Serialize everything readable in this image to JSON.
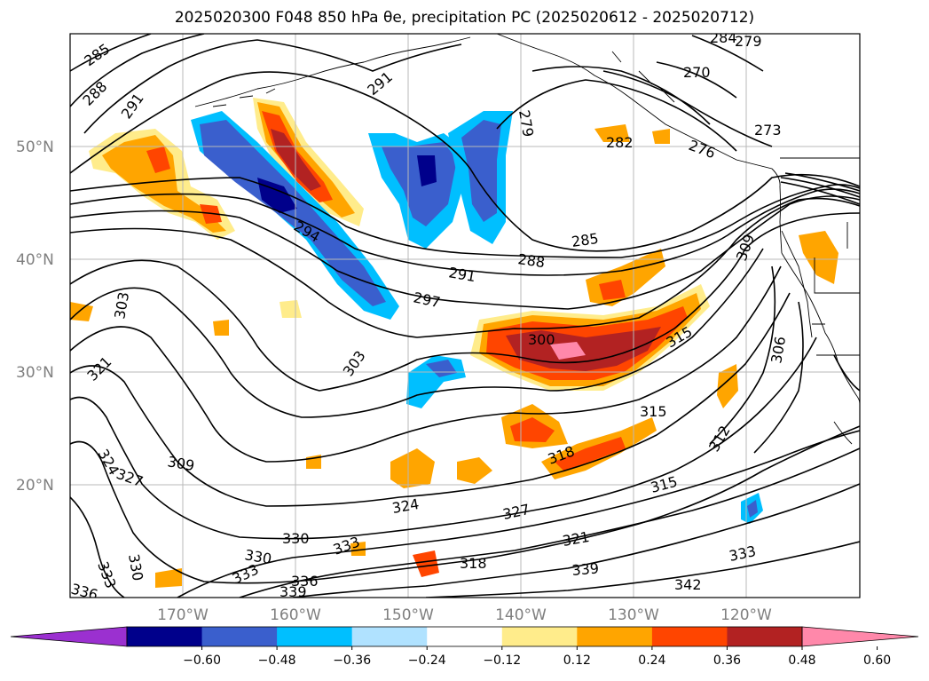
{
  "title": "2025020300 F048 850 hPa θe, precipitation PC (2025020612 - 2025020712)",
  "map": {
    "lat_labels": [
      {
        "lat": 50,
        "label": "50°N"
      },
      {
        "lat": 40,
        "label": "40°N"
      },
      {
        "lat": 30,
        "label": "30°N"
      },
      {
        "lat": 20,
        "label": "20°N"
      }
    ],
    "lon_labels": [
      {
        "lon": -170,
        "label": "170°W"
      },
      {
        "lon": -160,
        "label": "160°W"
      },
      {
        "lon": -150,
        "label": "150°W"
      },
      {
        "lon": -140,
        "label": "140°W"
      },
      {
        "lon": -130,
        "label": "130°W"
      },
      {
        "lon": -120,
        "label": "120°W"
      }
    ],
    "contour_labels": [
      "285",
      "288",
      "291",
      "291",
      "279",
      "282",
      "270",
      "273",
      "276",
      "284",
      "279",
      "285",
      "288",
      "291",
      "294",
      "297",
      "300",
      "303",
      "303",
      "309",
      "309",
      "312",
      "315",
      "315",
      "315",
      "318",
      "318",
      "321",
      "321",
      "324",
      "324",
      "327",
      "327",
      "330",
      "330",
      "333",
      "333",
      "333",
      "333",
      "336",
      "336",
      "339",
      "339",
      "342",
      "306"
    ]
  },
  "colorbar": {
    "colors": [
      "#9b30d0",
      "#00008b",
      "#3a5fcd",
      "#00bfff",
      "#b0e2ff",
      "#ffffff",
      "#ffec8b",
      "#ffa500",
      "#ff4500",
      "#b22222",
      "#ff88aa"
    ],
    "ticks": [
      "−0.60",
      "−0.48",
      "−0.36",
      "−0.24",
      "−0.12",
      "0.12",
      "0.24",
      "0.36",
      "0.48",
      "0.60"
    ],
    "extend": "both"
  }
}
